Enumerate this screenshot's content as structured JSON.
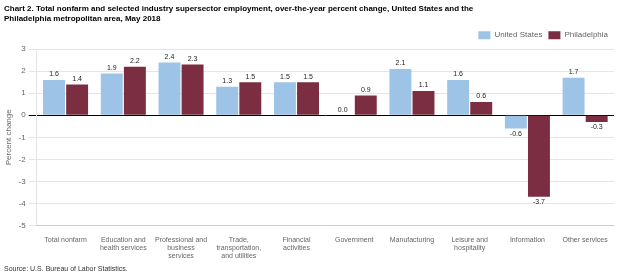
{
  "chart_data": {
    "type": "bar",
    "title": [
      "Chart 2. Total nonfarm and selected industry supersector employment, over-the-year percent change, United States and the",
      "Philadelphia metropolitan area, May 2018"
    ],
    "y_label": "Percent change",
    "source": "Source: U.S. Bureau of Labor Statistics.",
    "categories": [
      "Total nonfarm",
      "Education and\nhealth services",
      "Professional and\nbusiness\nservices",
      "Trade,\ntransportation,\nand utilities",
      "Financial\nactivities",
      "Government",
      "Manufacturing",
      "Leisure and\nhospitality",
      "Information",
      "Other services"
    ],
    "series": [
      {
        "name": "United States",
        "color": "#9DC3E6",
        "values": [
          1.6,
          1.9,
          2.4,
          1.3,
          1.5,
          0.0,
          2.1,
          1.6,
          -0.6,
          1.7
        ],
        "value_labels": [
          "1.6",
          "1.9",
          "2.4",
          "1.3",
          "1.5",
          "0.0",
          "2.1",
          "1.6",
          "-0.6",
          "1.7"
        ]
      },
      {
        "name": "Philadelphia",
        "color": "#7B2D42",
        "values": [
          1.4,
          2.2,
          2.3,
          1.5,
          1.5,
          0.9,
          1.1,
          0.6,
          -3.7,
          -0.3
        ],
        "value_labels": [
          "1.4",
          "2.2",
          "2.3",
          "1.5",
          "1.5",
          "0.9",
          "1.1",
          "0.6",
          "-3.7",
          "-0.3"
        ]
      }
    ],
    "ylim": [
      -5,
      3
    ],
    "yticks": [
      -5,
      -4,
      -3,
      -2,
      -1,
      0,
      1,
      2,
      3
    ],
    "grid": true,
    "legend": "upper right",
    "data_labels": true
  }
}
